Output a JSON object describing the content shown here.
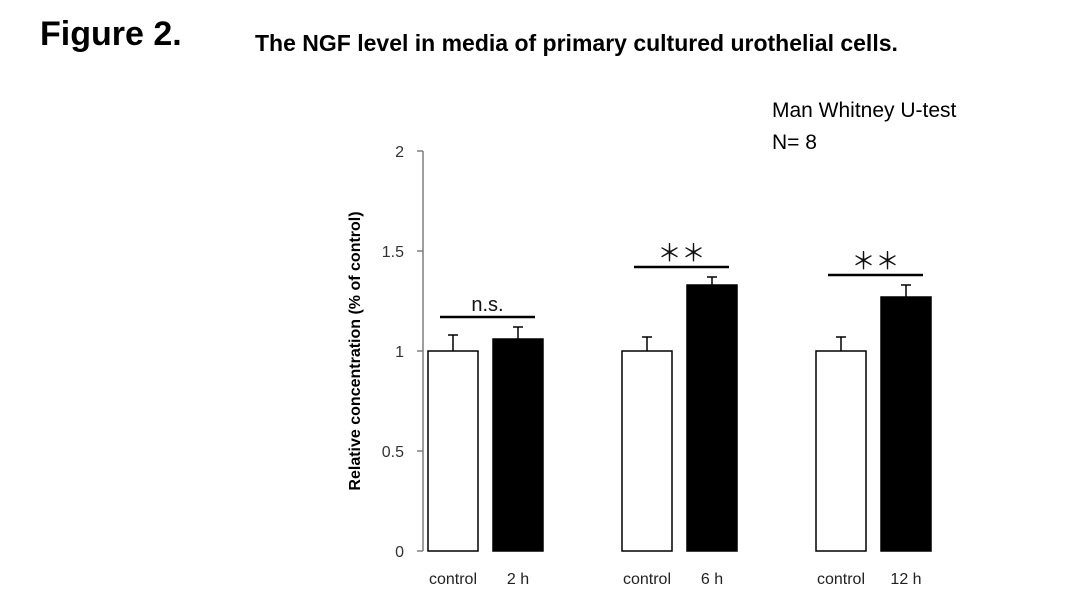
{
  "figure_label": "Figure 2.",
  "title": "The NGF level in  media of primary cultured urothelial cells.",
  "notes": [
    "Man Whitney U-test",
    "N= 8"
  ],
  "chart_data": {
    "type": "bar",
    "ylabel": "Relative concentration (% of control)",
    "ylim": [
      0,
      2
    ],
    "yticks": [
      0,
      0.5,
      1,
      1.5,
      2
    ],
    "ytick_labels": [
      "0",
      "0.5",
      "1",
      "1.5",
      "2"
    ],
    "grid": false,
    "legend": "none",
    "groups": [
      {
        "bars": [
          {
            "label": "control",
            "value": 1.0,
            "error": 0.08,
            "fill": "#ffffff"
          },
          {
            "label": "2 h",
            "value": 1.06,
            "error": 0.06,
            "fill": "#000000"
          }
        ],
        "significance": "n.s."
      },
      {
        "bars": [
          {
            "label": "control",
            "value": 1.0,
            "error": 0.07,
            "fill": "#ffffff"
          },
          {
            "label": "6 h",
            "value": 1.33,
            "error": 0.04,
            "fill": "#000000"
          }
        ],
        "significance": "＊＊"
      },
      {
        "bars": [
          {
            "label": "control",
            "value": 1.0,
            "error": 0.07,
            "fill": "#ffffff"
          },
          {
            "label": "12 h",
            "value": 1.27,
            "error": 0.06,
            "fill": "#000000"
          }
        ],
        "significance": "＊＊"
      }
    ]
  }
}
